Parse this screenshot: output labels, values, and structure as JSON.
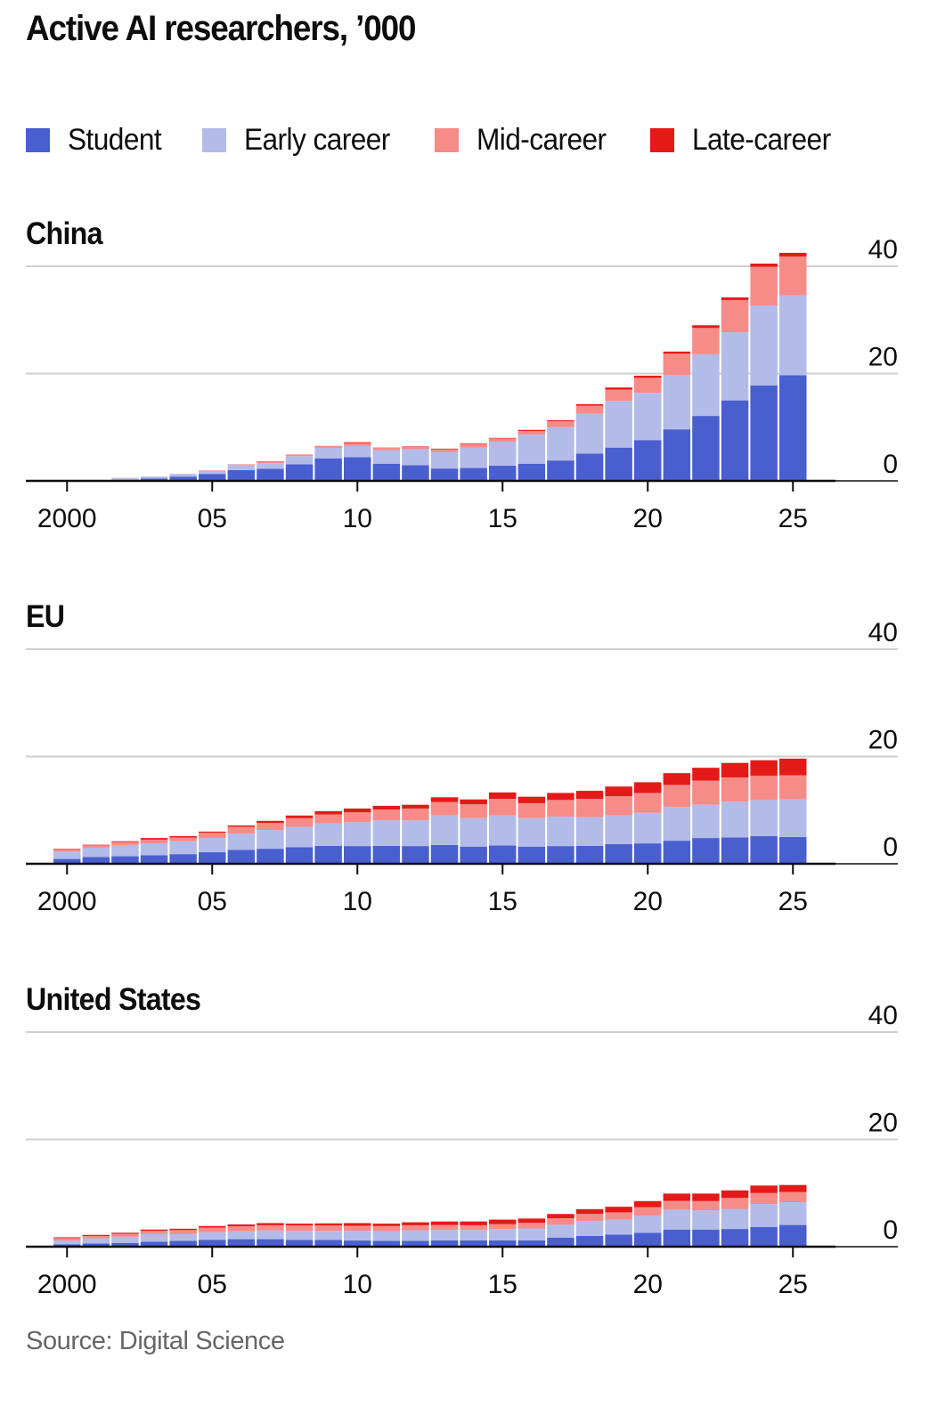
{
  "title": "Active AI researchers, ’000",
  "source": "Source: Digital Science",
  "legend": [
    {
      "label": "Student",
      "color": "#4a5fcf"
    },
    {
      "label": "Early career",
      "color": "#b3bbe9"
    },
    {
      "label": "Mid-career",
      "color": "#f78b88"
    },
    {
      "label": "Late-career",
      "color": "#e41a18"
    }
  ],
  "chart_data": [
    {
      "type": "bar",
      "stacked": true,
      "title": "China",
      "xlabel": "",
      "ylabel": "Active AI researchers, '000",
      "ylim": [
        0,
        40
      ],
      "yticks": [
        0,
        20,
        40
      ],
      "xticks": [
        {
          "year": 2000,
          "label": "2000"
        },
        {
          "year": 2005,
          "label": "05"
        },
        {
          "year": 2010,
          "label": "10"
        },
        {
          "year": 2015,
          "label": "15"
        },
        {
          "year": 2020,
          "label": "20"
        },
        {
          "year": 2025,
          "label": "25"
        }
      ],
      "grid": true,
      "yaxis_position": "right",
      "x": [
        2000,
        2001,
        2002,
        2003,
        2004,
        2005,
        2006,
        2007,
        2008,
        2009,
        2010,
        2011,
        2012,
        2013,
        2014,
        2015,
        2016,
        2017,
        2018,
        2019,
        2020,
        2021,
        2022,
        2023,
        2024,
        2025
      ],
      "series": [
        {
          "name": "Student",
          "values": [
            0.0,
            0.05,
            0.2,
            0.45,
            0.8,
            1.3,
            2.0,
            2.25,
            3.1,
            4.2,
            4.4,
            3.2,
            2.9,
            2.3,
            2.4,
            2.85,
            3.2,
            3.8,
            5.1,
            6.2,
            7.6,
            9.6,
            12.1,
            15.0,
            17.8,
            19.7
          ]
        },
        {
          "name": "Early career",
          "values": [
            0.0,
            0.05,
            0.3,
            0.35,
            0.5,
            0.45,
            1.0,
            1.05,
            1.5,
            1.95,
            2.1,
            2.5,
            3.0,
            3.1,
            3.8,
            4.45,
            5.4,
            6.2,
            7.4,
            8.7,
            8.8,
            10.1,
            11.5,
            12.7,
            14.9,
            14.9
          ]
        },
        {
          "name": "Mid-career",
          "values": [
            0.0,
            0.0,
            0.05,
            0.0,
            0.0,
            0.1,
            0.1,
            0.2,
            0.25,
            0.3,
            0.55,
            0.45,
            0.4,
            0.5,
            0.7,
            0.6,
            0.7,
            1.1,
            1.5,
            2.1,
            2.8,
            4.0,
            4.9,
            6.0,
            7.2,
            7.2
          ]
        },
        {
          "name": "Late-career",
          "values": [
            0.0,
            0.0,
            0.0,
            0.0,
            0.0,
            0.05,
            0.0,
            0.1,
            0.05,
            0.05,
            0.15,
            0.05,
            0.1,
            0.1,
            0.1,
            0.1,
            0.2,
            0.2,
            0.3,
            0.4,
            0.4,
            0.4,
            0.5,
            0.5,
            0.6,
            0.7
          ]
        }
      ]
    },
    {
      "type": "bar",
      "stacked": true,
      "title": "EU",
      "xlabel": "",
      "ylabel": "Active AI researchers, '000",
      "ylim": [
        0,
        40
      ],
      "yticks": [
        0,
        20,
        40
      ],
      "xticks": [
        {
          "year": 2000,
          "label": "2000"
        },
        {
          "year": 2005,
          "label": "05"
        },
        {
          "year": 2010,
          "label": "10"
        },
        {
          "year": 2015,
          "label": "15"
        },
        {
          "year": 2020,
          "label": "20"
        },
        {
          "year": 2025,
          "label": "25"
        }
      ],
      "grid": true,
      "yaxis_position": "right",
      "x": [
        2000,
        2001,
        2002,
        2003,
        2004,
        2005,
        2006,
        2007,
        2008,
        2009,
        2010,
        2011,
        2012,
        2013,
        2014,
        2015,
        2016,
        2017,
        2018,
        2019,
        2020,
        2021,
        2022,
        2023,
        2024,
        2025
      ],
      "series": [
        {
          "name": "Student",
          "values": [
            0.9,
            1.25,
            1.4,
            1.6,
            1.8,
            2.15,
            2.6,
            2.8,
            3.1,
            3.35,
            3.3,
            3.35,
            3.3,
            3.5,
            3.2,
            3.4,
            3.2,
            3.3,
            3.35,
            3.65,
            3.8,
            4.3,
            4.8,
            4.9,
            5.15,
            5.0
          ]
        },
        {
          "name": "Early career",
          "values": [
            1.4,
            1.75,
            2.1,
            2.2,
            2.4,
            2.65,
            3.05,
            3.5,
            3.8,
            4.15,
            4.45,
            4.75,
            4.8,
            5.5,
            5.3,
            5.6,
            5.3,
            5.5,
            5.35,
            5.4,
            5.7,
            6.3,
            6.2,
            6.7,
            6.75,
            7.0
          ]
        },
        {
          "name": "Mid-career",
          "values": [
            0.4,
            0.45,
            0.55,
            0.7,
            0.7,
            1.0,
            1.25,
            1.3,
            1.6,
            1.7,
            1.85,
            2.0,
            2.2,
            2.5,
            2.6,
            3.1,
            2.8,
            3.1,
            3.4,
            3.55,
            3.7,
            4.1,
            4.5,
            4.5,
            4.5,
            4.5
          ]
        },
        {
          "name": "Late-career",
          "values": [
            0.1,
            0.1,
            0.15,
            0.3,
            0.25,
            0.2,
            0.25,
            0.4,
            0.5,
            0.6,
            0.7,
            0.7,
            0.7,
            0.9,
            0.9,
            1.2,
            1.2,
            1.3,
            1.5,
            1.8,
            2.0,
            2.2,
            2.4,
            2.7,
            2.9,
            3.1
          ]
        }
      ]
    },
    {
      "type": "bar",
      "stacked": true,
      "title": "United States",
      "xlabel": "",
      "ylabel": "Active AI researchers, '000",
      "ylim": [
        0,
        40
      ],
      "yticks": [
        0,
        20,
        40
      ],
      "xticks": [
        {
          "year": 2000,
          "label": "2000"
        },
        {
          "year": 2005,
          "label": "05"
        },
        {
          "year": 2010,
          "label": "10"
        },
        {
          "year": 2015,
          "label": "15"
        },
        {
          "year": 2020,
          "label": "20"
        },
        {
          "year": 2025,
          "label": "25"
        }
      ],
      "grid": true,
      "yaxis_position": "right",
      "x": [
        2000,
        2001,
        2002,
        2003,
        2004,
        2005,
        2006,
        2007,
        2008,
        2009,
        2010,
        2011,
        2012,
        2013,
        2014,
        2015,
        2016,
        2017,
        2018,
        2019,
        2020,
        2021,
        2022,
        2023,
        2024,
        2025
      ],
      "series": [
        {
          "name": "Student",
          "values": [
            0.45,
            0.6,
            0.7,
            0.95,
            1.1,
            1.3,
            1.4,
            1.4,
            1.25,
            1.25,
            1.15,
            1.1,
            1.1,
            1.2,
            1.2,
            1.2,
            1.2,
            1.7,
            2.0,
            2.25,
            2.6,
            3.2,
            3.2,
            3.3,
            3.7,
            4.05
          ]
        },
        {
          "name": "Early career",
          "values": [
            0.7,
            0.95,
            1.15,
            1.4,
            1.25,
            1.4,
            1.5,
            1.65,
            1.7,
            1.7,
            1.8,
            1.8,
            1.95,
            1.9,
            1.9,
            2.1,
            2.2,
            2.4,
            2.8,
            2.8,
            3.2,
            3.7,
            3.6,
            3.75,
            4.25,
            4.25
          ]
        },
        {
          "name": "Mid-career",
          "values": [
            0.45,
            0.45,
            0.55,
            0.6,
            0.75,
            0.85,
            0.9,
            0.95,
            1.0,
            1.0,
            0.95,
            0.95,
            0.95,
            0.95,
            0.9,
            0.9,
            1.05,
            1.2,
            1.3,
            1.35,
            1.55,
            1.65,
            1.7,
            2.05,
            2.05,
            1.9
          ]
        },
        {
          "name": "Late-career",
          "values": [
            0.15,
            0.2,
            0.2,
            0.25,
            0.25,
            0.3,
            0.35,
            0.4,
            0.35,
            0.4,
            0.5,
            0.45,
            0.55,
            0.65,
            0.7,
            0.85,
            0.8,
            0.8,
            0.9,
            1.05,
            1.15,
            1.35,
            1.4,
            1.4,
            1.4,
            1.3
          ]
        }
      ]
    }
  ]
}
